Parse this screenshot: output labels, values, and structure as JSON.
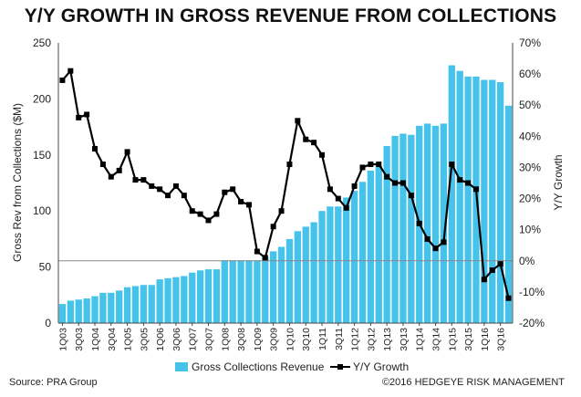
{
  "chart_data": {
    "type": "bar+line",
    "title": "Y/Y GROWTH IN GROSS REVENUE FROM COLLECTIONS",
    "ylabel_left": "Gross Rev from Collections ($M)",
    "ylabel_right": "Y/Y Growth",
    "ylim_left": [
      0,
      250
    ],
    "ylim_right": [
      -20,
      70
    ],
    "left_ticks": [
      "0",
      "50",
      "100",
      "150",
      "200",
      "250"
    ],
    "right_ticks": [
      "-20%",
      "-10%",
      "0%",
      "10%",
      "20%",
      "30%",
      "40%",
      "50%",
      "60%",
      "70%"
    ],
    "colors": {
      "bars": "#45c3ea",
      "line": "#000000",
      "zero_line": "#888888"
    },
    "categories": [
      "1Q03",
      "2Q03",
      "3Q03",
      "4Q03",
      "1Q04",
      "2Q04",
      "3Q04",
      "4Q04",
      "1Q05",
      "2Q05",
      "3Q05",
      "4Q05",
      "1Q06",
      "2Q06",
      "3Q06",
      "4Q06",
      "1Q07",
      "2Q07",
      "3Q07",
      "4Q07",
      "1Q08",
      "2Q08",
      "3Q08",
      "4Q08",
      "1Q09",
      "2Q09",
      "3Q09",
      "4Q09",
      "1Q10",
      "2Q10",
      "3Q10",
      "4Q10",
      "1Q11",
      "2Q11",
      "3Q11",
      "4Q11",
      "1Q12",
      "2Q12",
      "3Q12",
      "4Q12",
      "1Q13",
      "2Q13",
      "3Q13",
      "4Q13",
      "1Q14",
      "2Q14",
      "3Q14",
      "4Q14",
      "1Q15",
      "2Q15",
      "3Q15",
      "4Q15",
      "1Q16",
      "2Q16",
      "3Q16",
      "4Q16"
    ],
    "x_tick_labels": [
      "1Q03",
      "3Q03",
      "1Q04",
      "3Q04",
      "1Q05",
      "3Q05",
      "1Q06",
      "3Q06",
      "1Q07",
      "3Q07",
      "1Q08",
      "3Q08",
      "1Q09",
      "3Q09",
      "1Q10",
      "3Q10",
      "1Q11",
      "3Q11",
      "1Q12",
      "3Q12",
      "1Q13",
      "3Q13",
      "1Q14",
      "3Q14",
      "1Q15",
      "3Q15",
      "1Q16",
      "3Q16"
    ],
    "series": [
      {
        "name": "Gross Collections Revenue",
        "type": "bar",
        "axis": "left",
        "values": [
          17,
          20,
          21,
          22,
          24,
          27,
          27,
          29,
          32,
          33,
          34,
          34,
          39,
          40,
          41,
          42,
          45,
          47,
          48,
          48,
          56,
          56,
          56,
          56,
          56,
          59,
          64,
          68,
          75,
          82,
          86,
          90,
          100,
          104,
          104,
          112,
          118,
          126,
          136,
          140,
          158,
          167,
          169,
          168,
          176,
          178,
          176,
          178,
          230,
          225,
          220,
          220,
          217,
          217,
          215,
          194
        ]
      },
      {
        "name": "Y/Y Growth",
        "type": "line",
        "axis": "right",
        "values": [
          58,
          61,
          46,
          47,
          36,
          31,
          27,
          29,
          35,
          26,
          26,
          24,
          23,
          21,
          24,
          21,
          16,
          15,
          13,
          15,
          22,
          23,
          19,
          18,
          3,
          1,
          11,
          16,
          31,
          45,
          39,
          38,
          34,
          23,
          20,
          17,
          24,
          30,
          31,
          31,
          27,
          25,
          25,
          21,
          12,
          7,
          4,
          6,
          31,
          26,
          25,
          23,
          -6,
          -3,
          -1,
          -12
        ]
      }
    ],
    "legend": {
      "placement": "bottom"
    },
    "grid": false
  },
  "footer": {
    "source": "Source: PRA Group",
    "copyright": "©2016 HEDGEYE RISK MANAGEMENT"
  }
}
